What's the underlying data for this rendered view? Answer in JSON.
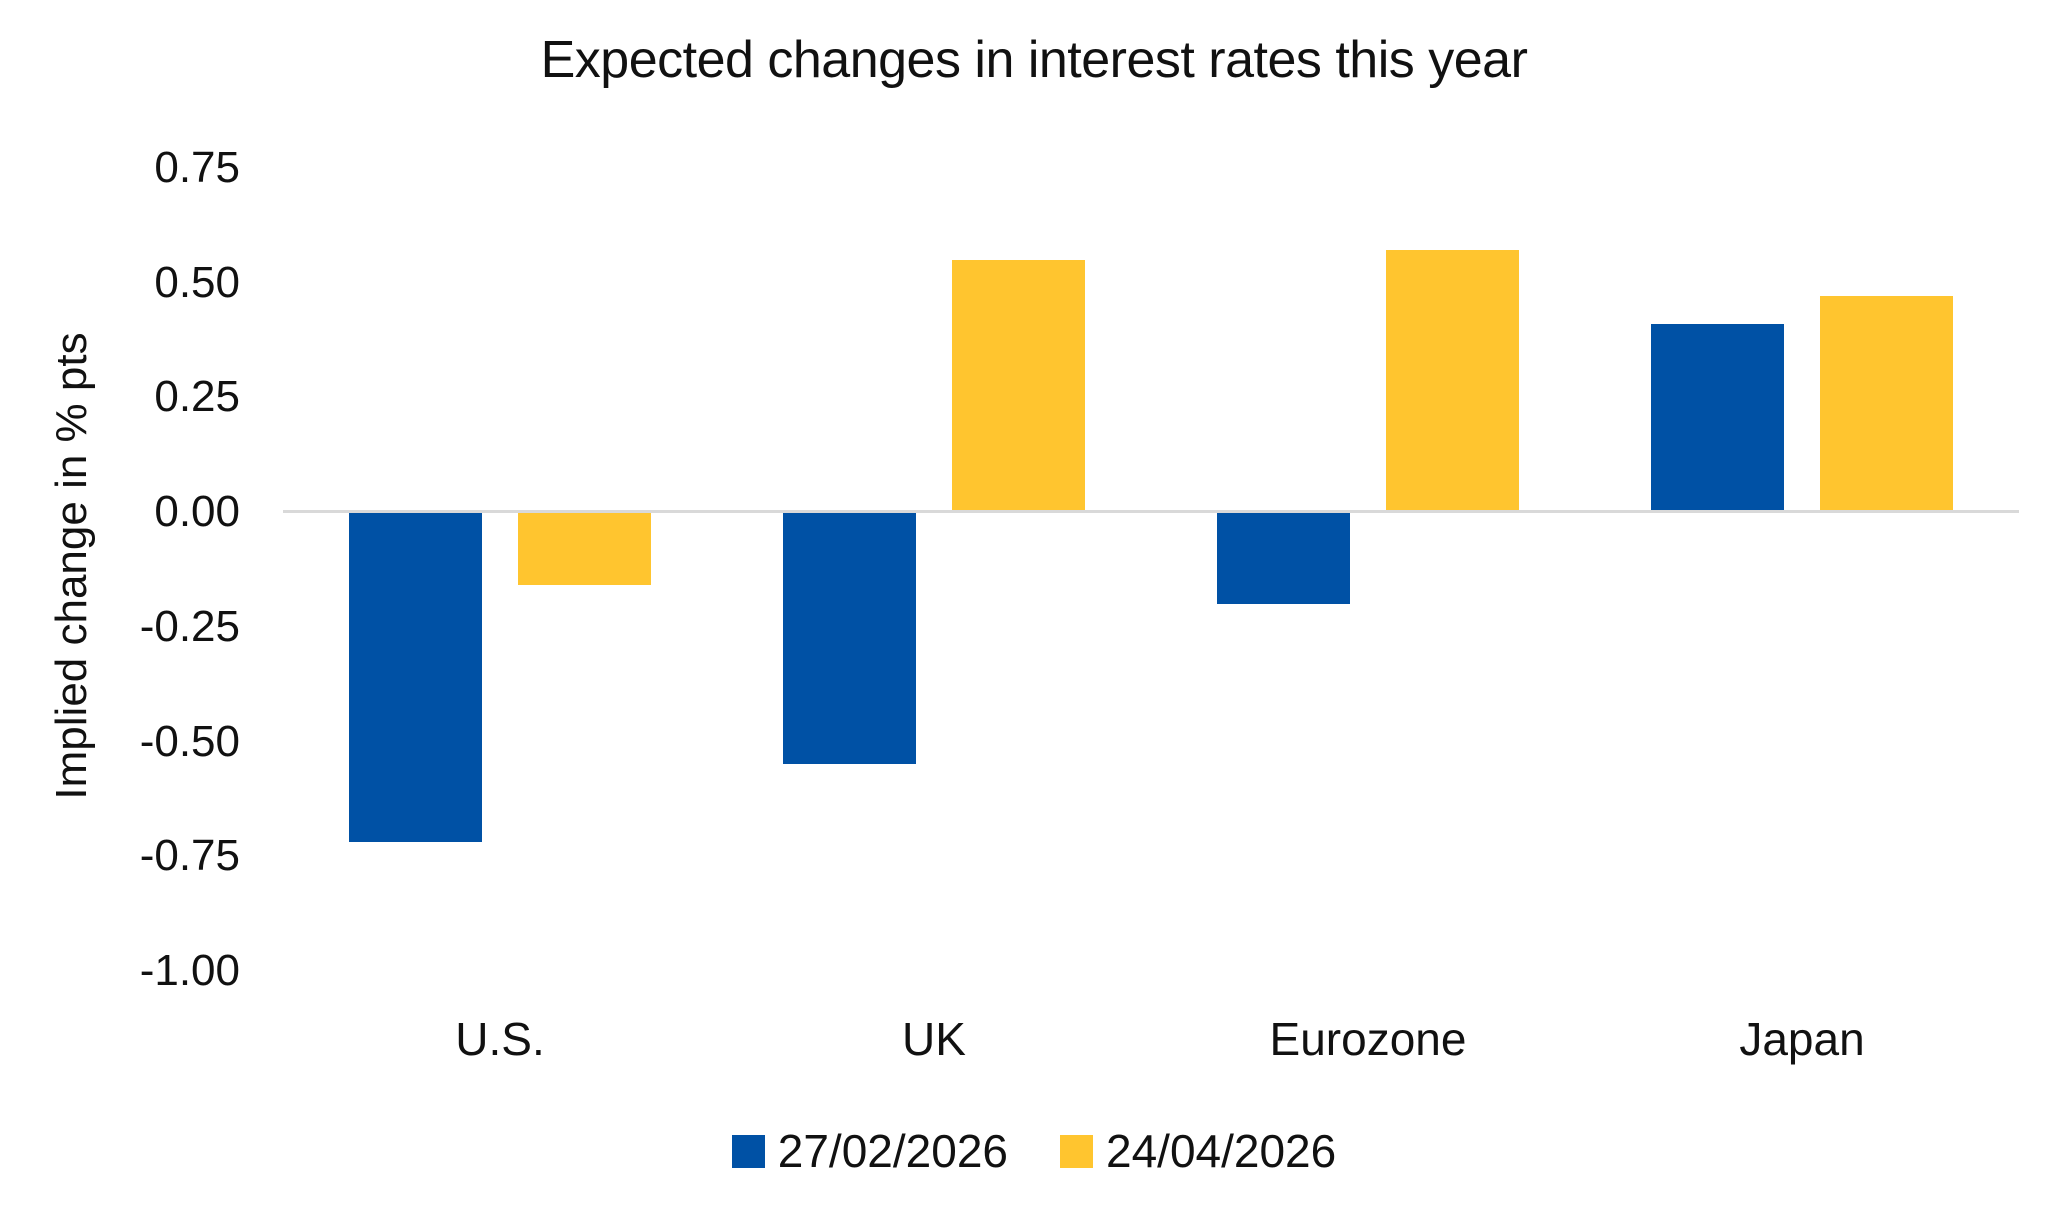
{
  "chart_data": {
    "type": "bar",
    "title": "Expected changes in interest rates this year",
    "ylabel": "Implied change in % pts",
    "xlabel": "",
    "categories": [
      "U.S.",
      "UK",
      "Eurozone",
      "Japan"
    ],
    "series": [
      {
        "name": "27/02/2026",
        "color": "#0051A5",
        "values": [
          -0.72,
          -0.55,
          -0.2,
          0.41
        ]
      },
      {
        "name": "24/04/2026",
        "color": "#FFC52F",
        "values": [
          -0.16,
          0.55,
          0.57,
          0.47
        ]
      }
    ],
    "y_ticks": [
      {
        "label": "0.75",
        "value": 0.75
      },
      {
        "label": "0.50",
        "value": 0.5
      },
      {
        "label": "0.25",
        "value": 0.25
      },
      {
        "label": "0.00",
        "value": 0.0
      },
      {
        "label": "-0.25",
        "value": -0.25
      },
      {
        "label": "-0.50",
        "value": -0.5
      },
      {
        "label": "-0.75",
        "value": -0.75
      },
      {
        "label": "-1.00",
        "value": -1.0
      }
    ],
    "ylim": [
      -1.0,
      0.85
    ],
    "grid": "off",
    "baseline_color": "#D9D9D9",
    "legend_position": "bottom",
    "text_color": "#111111",
    "background_color": "#FFFFFF"
  }
}
